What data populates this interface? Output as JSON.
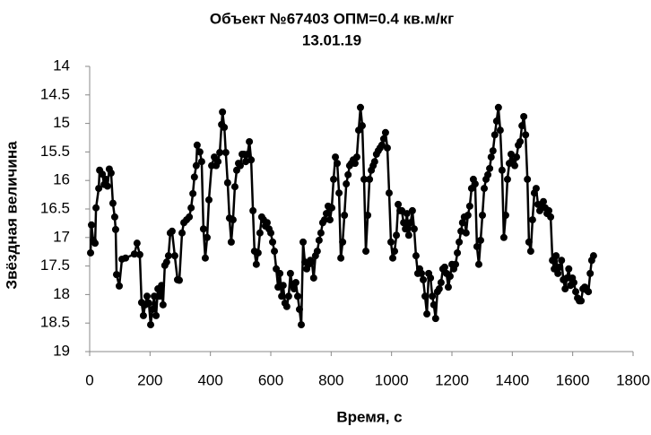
{
  "chart_data": {
    "type": "line",
    "title": "Объект №67403 ОПМ=0.4 кв.м/кг",
    "subtitle": "13.01.19",
    "x_label": "Время, с",
    "y_label": "Звёздная величина",
    "color": "#000000",
    "markers": true,
    "y_inverted": true,
    "grid": false,
    "xlim": [
      0,
      1800
    ],
    "xticks": [
      0,
      200,
      400,
      600,
      800,
      1000,
      1200,
      1400,
      1600,
      1800
    ],
    "ylim": [
      14,
      19
    ],
    "yticks": [
      14,
      14.5,
      15,
      15.5,
      16,
      16.5,
      17,
      17.5,
      18,
      18.5,
      19
    ],
    "x": [
      3,
      6,
      12,
      18,
      21,
      30,
      33,
      42,
      48,
      53,
      59,
      65,
      71,
      77,
      83,
      86,
      89,
      98,
      107,
      119,
      148,
      157,
      166,
      172,
      178,
      184,
      190,
      196,
      202,
      208,
      214,
      220,
      226,
      232,
      238,
      243,
      249,
      255,
      261,
      267,
      273,
      282,
      291,
      297,
      306,
      312,
      321,
      330,
      336,
      342,
      347,
      353,
      356,
      365,
      371,
      377,
      383,
      389,
      395,
      404,
      413,
      419,
      425,
      431,
      437,
      440,
      446,
      451,
      457,
      463,
      469,
      475,
      481,
      487,
      493,
      499,
      505,
      511,
      517,
      523,
      529,
      535,
      541,
      546,
      552,
      558,
      564,
      570,
      576,
      582,
      588,
      594,
      600,
      606,
      612,
      618,
      624,
      630,
      636,
      641,
      647,
      653,
      659,
      665,
      671,
      677,
      683,
      689,
      695,
      701,
      707,
      713,
      719,
      725,
      731,
      736,
      742,
      748,
      754,
      760,
      766,
      772,
      778,
      784,
      790,
      796,
      802,
      808,
      814,
      820,
      826,
      832,
      838,
      844,
      850,
      856,
      861,
      867,
      873,
      879,
      885,
      891,
      897,
      903,
      909,
      915,
      921,
      927,
      933,
      939,
      944,
      950,
      956,
      962,
      968,
      974,
      980,
      986,
      992,
      998,
      1004,
      1010,
      1016,
      1022,
      1028,
      1034,
      1040,
      1046,
      1051,
      1057,
      1063,
      1069,
      1075,
      1081,
      1087,
      1093,
      1099,
      1105,
      1111,
      1117,
      1123,
      1129,
      1135,
      1140,
      1146,
      1152,
      1158,
      1164,
      1170,
      1176,
      1182,
      1188,
      1194,
      1200,
      1206,
      1212,
      1218,
      1224,
      1230,
      1235,
      1241,
      1247,
      1253,
      1259,
      1265,
      1271,
      1277,
      1283,
      1289,
      1295,
      1301,
      1307,
      1313,
      1319,
      1325,
      1330,
      1336,
      1342,
      1348,
      1354,
      1360,
      1366,
      1372,
      1378,
      1384,
      1390,
      1396,
      1402,
      1408,
      1414,
      1420,
      1426,
      1432,
      1438,
      1444,
      1450,
      1455,
      1461,
      1467,
      1473,
      1479,
      1485,
      1491,
      1497,
      1503,
      1509,
      1515,
      1521,
      1527,
      1533,
      1539,
      1545,
      1551,
      1557,
      1563,
      1569,
      1575,
      1581,
      1587,
      1593,
      1599,
      1604,
      1610,
      1616,
      1622,
      1628,
      1634,
      1640,
      1646,
      1652,
      1658,
      1663,
      1669
    ],
    "values": [
      17.27,
      16.78,
      17.05,
      17.1,
      16.48,
      16.14,
      15.82,
      15.89,
      16.07,
      15.98,
      16.1,
      15.8,
      15.87,
      16.4,
      16.64,
      16.86,
      17.65,
      17.85,
      17.38,
      17.36,
      17.29,
      17.1,
      17.3,
      18.14,
      18.37,
      18.18,
      18.03,
      18.15,
      18.53,
      18.26,
      18.03,
      18.37,
      17.9,
      18.03,
      17.84,
      18.18,
      17.49,
      17.43,
      17.32,
      16.92,
      16.89,
      17.32,
      17.74,
      17.75,
      16.92,
      16.74,
      16.69,
      16.64,
      16.48,
      16.23,
      15.94,
      15.74,
      15.38,
      15.5,
      15.67,
      16.85,
      17.36,
      17.0,
      16.34,
      15.74,
      15.59,
      15.74,
      15.67,
      15.51,
      15.02,
      14.8,
      15.07,
      15.51,
      16.04,
      16.66,
      17.08,
      16.69,
      16.11,
      15.82,
      15.7,
      15.74,
      15.54,
      15.54,
      15.67,
      15.54,
      15.32,
      15.64,
      16.53,
      17.24,
      17.47,
      17.27,
      16.92,
      16.64,
      16.69,
      16.8,
      16.74,
      16.85,
      16.92,
      17.08,
      17.24,
      17.55,
      17.87,
      17.63,
      18.03,
      17.84,
      18.15,
      18.21,
      18.03,
      17.63,
      17.84,
      17.9,
      17.79,
      18.03,
      18.26,
      18.53,
      17.08,
      17.43,
      17.55,
      17.47,
      17.4,
      17.43,
      17.71,
      17.32,
      17.24,
      17.05,
      16.92,
      16.74,
      16.69,
      16.58,
      16.45,
      16.69,
      16.48,
      15.98,
      15.59,
      15.7,
      16.22,
      17.36,
      17.08,
      16.61,
      16.06,
      15.9,
      15.74,
      15.7,
      15.64,
      15.7,
      15.59,
      15.12,
      14.72,
      15.04,
      15.98,
      17.24,
      16.61,
      15.98,
      15.82,
      15.74,
      15.67,
      15.54,
      15.48,
      15.43,
      15.38,
      15.27,
      15.16,
      15.43,
      16.22,
      17.08,
      17.36,
      17.24,
      16.96,
      16.42,
      16.53,
      16.53,
      16.74,
      16.85,
      16.58,
      16.96,
      16.74,
      16.53,
      16.85,
      17.32,
      17.63,
      17.55,
      17.63,
      17.74,
      18.03,
      18.34,
      17.63,
      17.71,
      18.03,
      18.18,
      18.42,
      17.95,
      17.9,
      17.79,
      17.55,
      17.52,
      17.63,
      17.87,
      17.68,
      17.47,
      17.55,
      17.47,
      17.27,
      17.08,
      16.89,
      16.74,
      16.64,
      16.92,
      16.61,
      16.45,
      16.14,
      15.98,
      16.06,
      17.16,
      17.47,
      17.05,
      16.61,
      16.14,
      15.98,
      15.9,
      15.79,
      15.59,
      15.48,
      15.2,
      14.96,
      14.72,
      15.12,
      15.82,
      17.0,
      16.61,
      15.98,
      15.7,
      15.54,
      15.67,
      15.74,
      15.59,
      15.38,
      15.32,
      15.04,
      14.88,
      15.2,
      15.98,
      17.08,
      17.24,
      16.69,
      16.22,
      16.14,
      16.42,
      16.53,
      16.42,
      16.37,
      16.48,
      16.58,
      16.53,
      16.64,
      17.4,
      17.55,
      17.32,
      17.63,
      17.52,
      17.4,
      17.74,
      17.9,
      17.71,
      17.55,
      17.84,
      17.71,
      17.79,
      17.95,
      18.06,
      18.11,
      18.11,
      17.9,
      17.87,
      17.92,
      17.95,
      17.63,
      17.4,
      17.32
    ]
  }
}
